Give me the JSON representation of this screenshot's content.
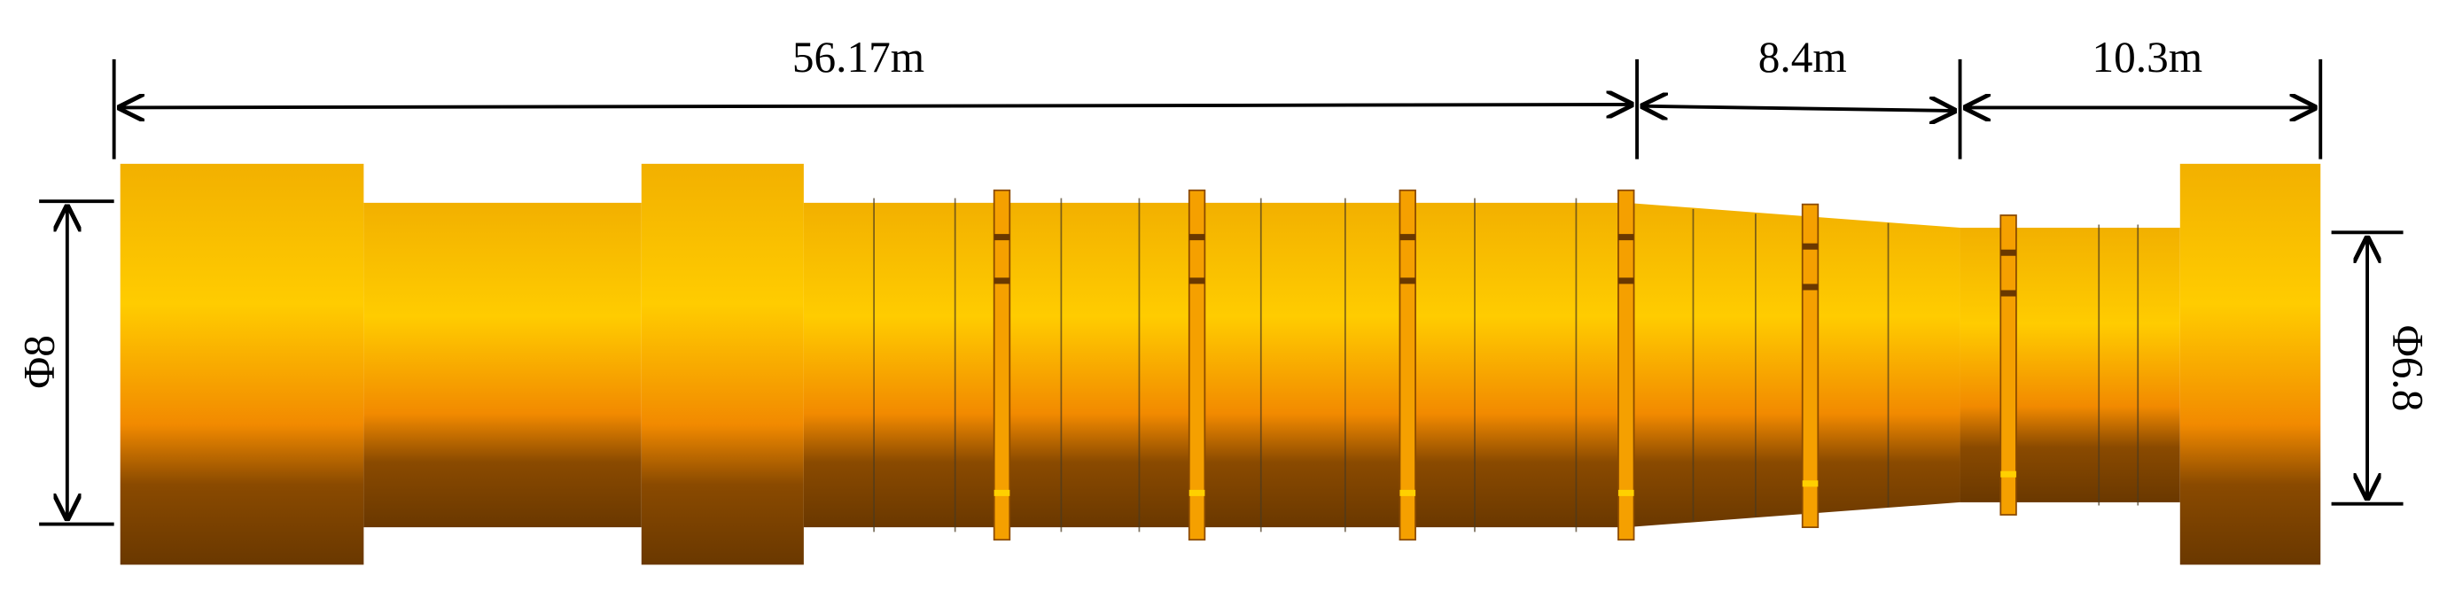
{
  "dimensions": {
    "section_1_length": "56.17m",
    "section_2_length": "8.4m",
    "section_3_length": "10.3m",
    "inlet_diameter": "Φ8",
    "outlet_diameter": "Φ6.8"
  }
}
